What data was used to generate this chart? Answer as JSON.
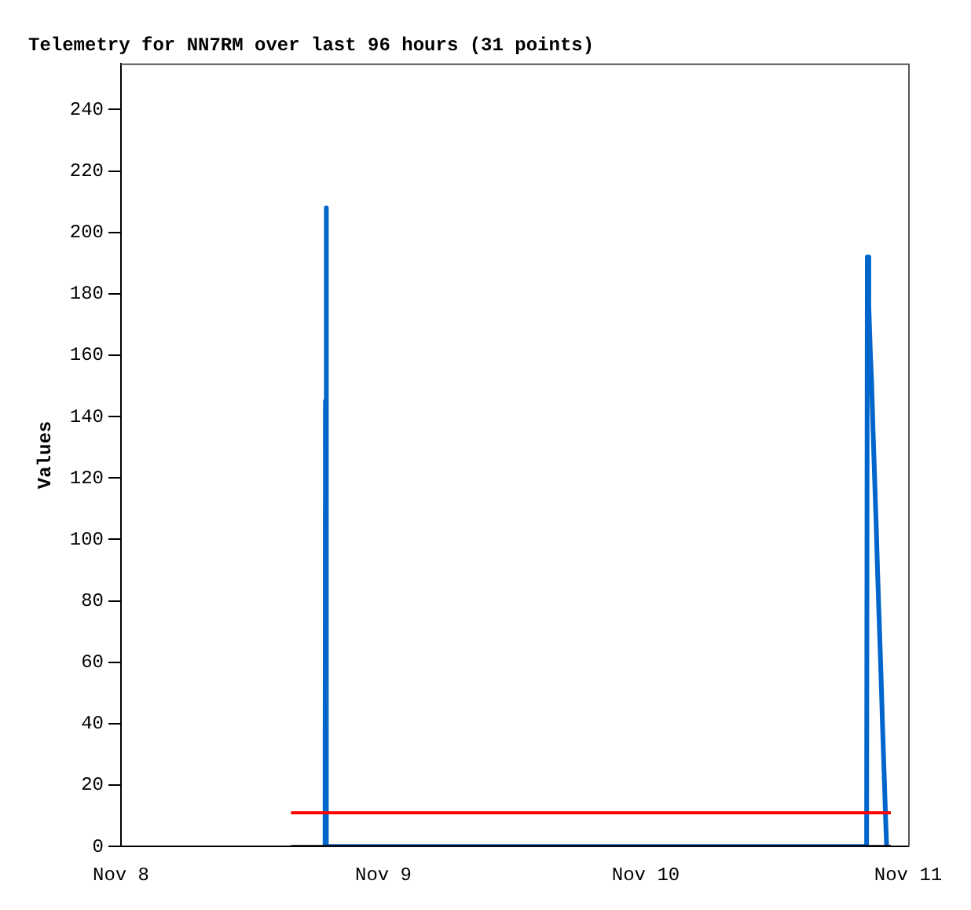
{
  "chart_data": {
    "type": "line",
    "title": "Telemetry for NN7RM over last 96 hours (31 points)",
    "ylabel": "Values",
    "xlim": [
      "--11-08T00:00",
      "--11-11T00:00"
    ],
    "xticks": [
      {
        "value": "--11-08T00:00",
        "label": "Nov 8"
      },
      {
        "value": "--11-09T00:00",
        "label": "Nov 9"
      },
      {
        "value": "--11-10T00:00",
        "label": "Nov 10"
      },
      {
        "value": "--11-11T00:00",
        "label": "Nov 11"
      }
    ],
    "ylim": [
      0,
      255
    ],
    "yticks": [
      0,
      20,
      40,
      60,
      80,
      100,
      120,
      140,
      160,
      180,
      200,
      220,
      240
    ],
    "grid": false,
    "legend": false,
    "marker": "none",
    "line_style": "solid",
    "series": [
      {
        "color": "#000000",
        "x": [
          "--11-08T15:33",
          "--11-10T22:25"
        ],
        "values": [
          0,
          0
        ]
      },
      {
        "color": "#ff0000",
        "x": [
          "--11-08T15:33",
          "--11-10T22:25"
        ],
        "values": [
          11,
          11
        ]
      },
      {
        "color": "#0066cc",
        "x": [
          "--11-08T18:40",
          "--11-08T18:42",
          "--11-08T18:46",
          "--11-08T18:48",
          "--11-10T20:12",
          "--11-10T20:16",
          "--11-10T20:24",
          "--11-10T20:33",
          "--11-10T20:39",
          "--11-10T20:47",
          "--11-10T20:56",
          "--11-10T21:05",
          "--11-10T21:13",
          "--11-10T21:22",
          "--11-10T21:31",
          "--11-10T21:39",
          "--11-10T21:48",
          "--11-10T21:57",
          "--11-10T22:02"
        ],
        "values": [
          0,
          145,
          208,
          0,
          0,
          192,
          176,
          160,
          152,
          136,
          120,
          104,
          88,
          72,
          56,
          40,
          24,
          8,
          0
        ]
      }
    ]
  }
}
